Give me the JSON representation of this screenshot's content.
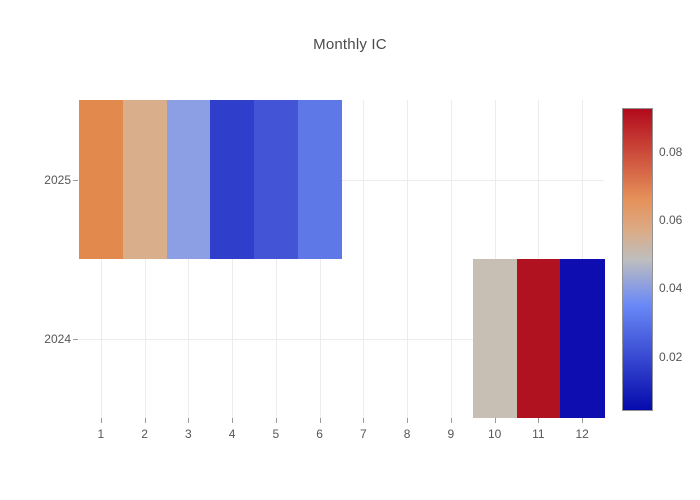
{
  "title": "Monthly IC",
  "chart_data": {
    "type": "heatmap",
    "title": "Monthly IC",
    "xlabel": "",
    "ylabel": "",
    "grid": true,
    "x_ticks": [
      "1",
      "2",
      "3",
      "4",
      "5",
      "6",
      "7",
      "8",
      "9",
      "10",
      "11",
      "12"
    ],
    "y_ticks": [
      "2025",
      "2024"
    ],
    "cells": [
      {
        "year": "2025",
        "month": 1,
        "value": 0.068,
        "color": "#e28a4d"
      },
      {
        "year": "2025",
        "month": 2,
        "value": 0.056,
        "color": "#d9af8b"
      },
      {
        "year": "2025",
        "month": 3,
        "value": 0.041,
        "color": "#8c9fe4"
      },
      {
        "year": "2025",
        "month": 4,
        "value": 0.017,
        "color": "#2f3ecb"
      },
      {
        "year": "2025",
        "month": 5,
        "value": 0.023,
        "color": "#4355d6"
      },
      {
        "year": "2025",
        "month": 6,
        "value": 0.031,
        "color": "#5e78e8"
      },
      {
        "year": "2024",
        "month": 10,
        "value": 0.051,
        "color": "#c7beb4"
      },
      {
        "year": "2024",
        "month": 11,
        "value": 0.093,
        "color": "#b11220"
      },
      {
        "year": "2024",
        "month": 12,
        "value": 0.004,
        "color": "#0e0eb0"
      }
    ],
    "colorbar": {
      "tick_labels": [
        "0.08",
        "0.06",
        "0.04",
        "0.02"
      ],
      "tick_values": [
        0.08,
        0.06,
        0.04,
        0.02
      ],
      "range": [
        0.004,
        0.093
      ],
      "colorscale_name": "RdBu (blue-low to red-high)",
      "gradient_stops": [
        {
          "pos": 0.0,
          "color": "#050aac"
        },
        {
          "pos": 0.35,
          "color": "#6a89f7"
        },
        {
          "pos": 0.5,
          "color": "#bebebe"
        },
        {
          "pos": 0.6,
          "color": "#dcaa84"
        },
        {
          "pos": 0.7,
          "color": "#e6915a"
        },
        {
          "pos": 1.0,
          "color": "#b20a1c"
        }
      ]
    }
  }
}
